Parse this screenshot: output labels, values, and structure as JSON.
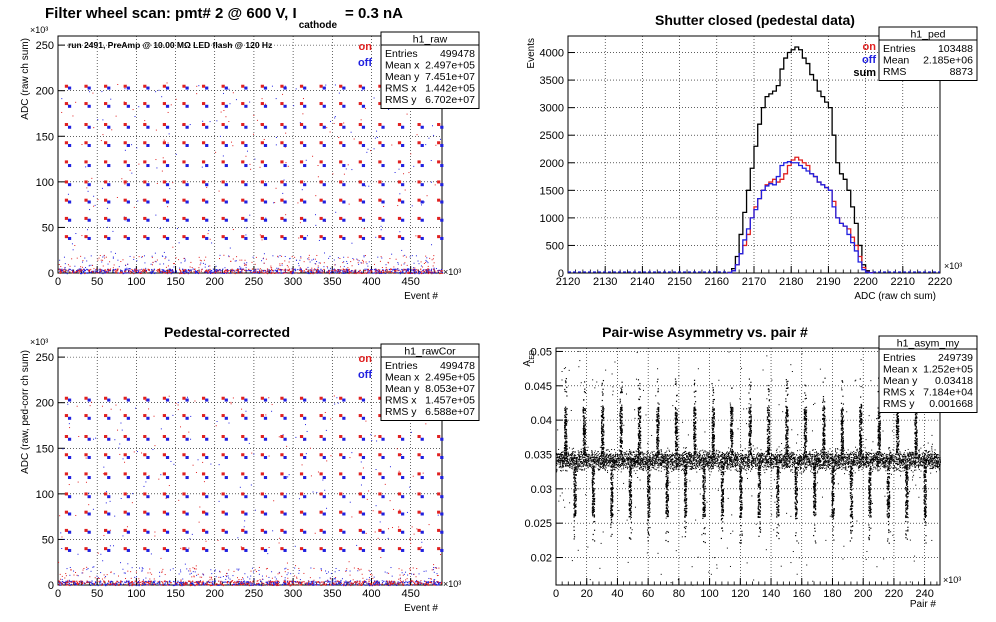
{
  "chart_data": [
    {
      "id": "raw",
      "type": "scatter",
      "title": "Filter wheel scan: pmt#   2 @   600 V, I",
      "title_sub": "cathode",
      "title_tail": "= 0.3 nA",
      "annotation": "run 2491, PreAmp @ 10.00 MΩ LED flash @  120 Hz",
      "xlabel": "Event #",
      "ylabel": "ADC (raw ch sum)",
      "x_exponent": "×10³",
      "y_exponent": "×10³",
      "xlim": [
        0,
        490
      ],
      "ylim": [
        0,
        260
      ],
      "x_ticks": [
        0,
        50,
        100,
        150,
        200,
        250,
        300,
        350,
        400,
        450
      ],
      "y_ticks": [
        0,
        50,
        100,
        150,
        200,
        250
      ],
      "legend": [
        "on",
        "off"
      ],
      "legend_colors": [
        "#e02020",
        "#2020e0"
      ],
      "grid": true,
      "stats": {
        "name": "h1_raw",
        "rows": [
          [
            "Entries",
            "499478"
          ],
          [
            "Mean x",
            "2.497e+05"
          ],
          [
            "Mean y",
            "7.451e+07"
          ],
          [
            "RMS x",
            "1.442e+05"
          ],
          [
            "RMS y",
            "6.702e+07"
          ]
        ]
      },
      "levels_on": [
        205,
        186,
        163,
        143,
        122,
        100,
        80,
        60,
        40,
        20,
        5
      ],
      "levels_off": [
        203,
        183,
        160,
        140,
        118,
        97,
        78,
        58,
        38,
        18,
        3
      ],
      "cycle_events": [
        10,
        35,
        60,
        85,
        110,
        135,
        160,
        185,
        210,
        235,
        260,
        285,
        310,
        335,
        360,
        385,
        410,
        435,
        460,
        485
      ]
    },
    {
      "id": "ped",
      "type": "line",
      "title": "Shutter closed (pedestal data)",
      "xlabel": "ADC (raw ch sum)",
      "ylabel": "Events",
      "x_exponent": "×10³",
      "xlim": [
        2120,
        2220
      ],
      "ylim": [
        0,
        4300
      ],
      "x_ticks": [
        2120,
        2130,
        2140,
        2150,
        2160,
        2170,
        2180,
        2190,
        2200,
        2210,
        2220
      ],
      "y_ticks": [
        0,
        500,
        1000,
        1500,
        2000,
        2500,
        3000,
        3500,
        4000
      ],
      "legend": [
        "on",
        "off",
        "sum"
      ],
      "legend_colors": [
        "#e02020",
        "#2020e0",
        "#000000"
      ],
      "grid": true,
      "stats": {
        "name": "h1_ped",
        "rows": [
          [
            "Entries",
            "103488"
          ],
          [
            "Mean",
            "2.185e+06"
          ],
          [
            "RMS",
            "8873"
          ]
        ]
      },
      "bin_x": [
        2163,
        2164,
        2165,
        2166,
        2167,
        2168,
        2169,
        2170,
        2171,
        2172,
        2173,
        2174,
        2175,
        2176,
        2177,
        2178,
        2179,
        2180,
        2181,
        2182,
        2183,
        2184,
        2185,
        2186,
        2187,
        2188,
        2189,
        2190,
        2191,
        2192,
        2193,
        2194,
        2195,
        2196,
        2197,
        2198,
        2199,
        2200,
        2201
      ],
      "series": [
        {
          "name": "sum",
          "values": [
            10,
            80,
            300,
            700,
            1100,
            1500,
            1900,
            2300,
            2700,
            3000,
            3200,
            3250,
            3300,
            3400,
            3700,
            3900,
            4000,
            4050,
            4100,
            4050,
            3900,
            3800,
            3600,
            3500,
            3300,
            3200,
            3100,
            3000,
            2500,
            2000,
            1800,
            1700,
            1500,
            1200,
            900,
            500,
            150,
            40,
            5
          ]
        },
        {
          "name": "on",
          "values": [
            5,
            40,
            150,
            350,
            500,
            700,
            1000,
            1200,
            1350,
            1500,
            1600,
            1650,
            1700,
            1650,
            1700,
            1800,
            1950,
            2050,
            2100,
            2050,
            2000,
            1950,
            1800,
            1750,
            1650,
            1600,
            1550,
            1500,
            1300,
            1000,
            900,
            850,
            800,
            650,
            500,
            300,
            100,
            20,
            3
          ]
        },
        {
          "name": "off",
          "values": [
            5,
            40,
            150,
            350,
            600,
            800,
            1000,
            1150,
            1350,
            1500,
            1580,
            1620,
            1600,
            1750,
            1950,
            2000,
            2020,
            2000,
            2000,
            1950,
            1900,
            1850,
            1800,
            1750,
            1650,
            1600,
            1550,
            1500,
            1200,
            1000,
            900,
            850,
            700,
            550,
            400,
            200,
            60,
            15,
            2
          ]
        }
      ]
    },
    {
      "id": "rawCor",
      "type": "scatter",
      "title": "Pedestal-corrected",
      "xlabel": "Event #",
      "ylabel": "ADC (raw, ped-corr ch sum)",
      "x_exponent": "×10³",
      "y_exponent": "×10³",
      "xlim": [
        0,
        490
      ],
      "ylim": [
        0,
        260
      ],
      "x_ticks": [
        0,
        50,
        100,
        150,
        200,
        250,
        300,
        350,
        400,
        450
      ],
      "y_ticks": [
        0,
        50,
        100,
        150,
        200,
        250
      ],
      "legend": [
        "on",
        "off"
      ],
      "legend_colors": [
        "#e02020",
        "#2020e0"
      ],
      "grid": true,
      "stats": {
        "name": "h1_rawCor",
        "rows": [
          [
            "Entries",
            "499478"
          ],
          [
            "Mean x",
            "2.495e+05"
          ],
          [
            "Mean y",
            "8.053e+07"
          ],
          [
            "RMS x",
            "1.457e+05"
          ],
          [
            "RMS y",
            "6.588e+07"
          ]
        ]
      },
      "levels_on": [
        205,
        186,
        163,
        143,
        122,
        100,
        80,
        60,
        40,
        20,
        5
      ],
      "levels_off": [
        203,
        183,
        160,
        140,
        118,
        97,
        78,
        58,
        38,
        18,
        3
      ],
      "cycle_events": [
        10,
        35,
        60,
        85,
        110,
        135,
        160,
        185,
        210,
        235,
        260,
        285,
        310,
        335,
        360,
        385,
        410,
        435,
        460,
        485
      ]
    },
    {
      "id": "asym",
      "type": "scatter",
      "title": "Pair-wise Asymmetry vs. pair #",
      "xlabel": "Pair #",
      "ylabel": "A",
      "ylabel_sub": "LED",
      "x_exponent": "×10³",
      "xlim": [
        0,
        250
      ],
      "ylim": [
        0.016,
        0.0505
      ],
      "x_ticks": [
        0,
        20,
        40,
        60,
        80,
        100,
        120,
        140,
        160,
        180,
        200,
        220,
        240
      ],
      "y_ticks": [
        0.02,
        0.025,
        0.03,
        0.035,
        0.04,
        0.045,
        0.05
      ],
      "y_tick_labels": [
        "0.02",
        "0.025",
        "0.03",
        "0.035",
        "0.04",
        "0.045",
        "0.05"
      ],
      "grid": true,
      "stats": {
        "name": "h1_asym_my",
        "rows": [
          [
            "Entries",
            "249739"
          ],
          [
            "Mean x",
            "1.252e+05"
          ],
          [
            "Mean y",
            "0.03418"
          ],
          [
            "RMS x",
            "7.184e+04"
          ],
          [
            "RMS y",
            "0.001668"
          ]
        ]
      },
      "band_center": 0.0342,
      "band_halfwidth": 0.0012,
      "spike_pairs": [
        6,
        18,
        30,
        42,
        54,
        66,
        78,
        90,
        102,
        114,
        126,
        138,
        150,
        162,
        174,
        186,
        198,
        210,
        222,
        234
      ]
    }
  ]
}
